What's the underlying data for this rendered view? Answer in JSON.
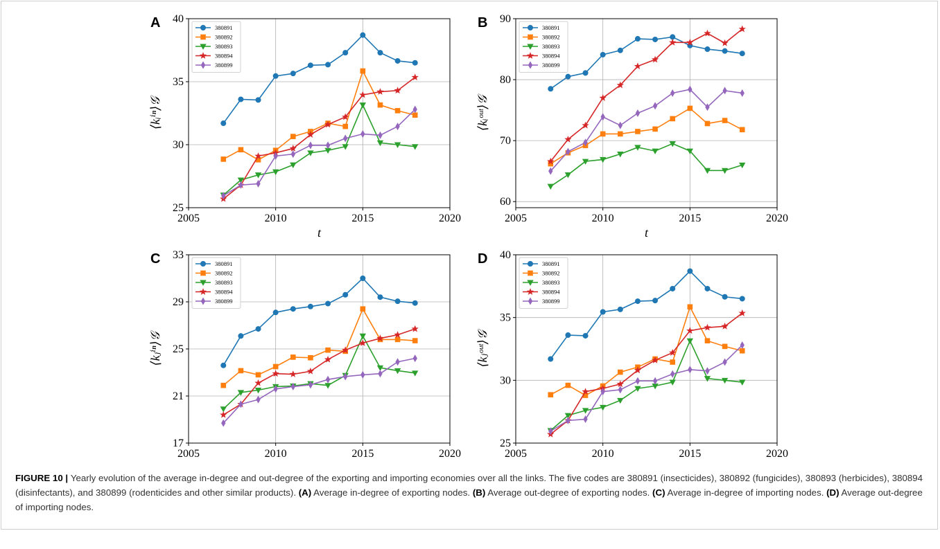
{
  "chart_data": [
    {
      "type": "line",
      "label": "A",
      "xlabel": "t",
      "ylabel": "⟨kᵢⁱⁿ⟩𝒢",
      "x": [
        2007,
        2008,
        2009,
        2010,
        2011,
        2012,
        2013,
        2014,
        2015,
        2016,
        2017,
        2018
      ],
      "xlim": [
        2005,
        2020
      ],
      "xticks": [
        2005,
        2010,
        2015,
        2020
      ],
      "ylim": [
        25,
        40
      ],
      "yticks": [
        25,
        30,
        35,
        40
      ],
      "grid": true,
      "legend": "upper-left",
      "series": [
        {
          "name": "380891",
          "color": "#1f77b4",
          "marker": "circle",
          "values": [
            31.7,
            33.6,
            33.55,
            35.45,
            35.65,
            36.3,
            36.35,
            37.3,
            38.7,
            37.3,
            36.65,
            36.5
          ]
        },
        {
          "name": "380892",
          "color": "#ff7f0e",
          "marker": "square",
          "values": [
            28.85,
            29.6,
            28.8,
            29.55,
            30.65,
            31.05,
            31.7,
            31.45,
            35.85,
            33.15,
            32.7,
            32.35
          ]
        },
        {
          "name": "380893",
          "color": "#2ca02c",
          "marker": "triangle-down",
          "values": [
            26.0,
            27.2,
            27.6,
            27.85,
            28.4,
            29.35,
            29.55,
            29.85,
            33.15,
            30.15,
            30.0,
            29.85
          ]
        },
        {
          "name": "380894",
          "color": "#d62728",
          "marker": "star",
          "values": [
            25.7,
            26.8,
            29.1,
            29.35,
            29.7,
            30.8,
            31.6,
            32.2,
            33.95,
            34.2,
            34.3,
            35.35
          ]
        },
        {
          "name": "380899",
          "color": "#9467bd",
          "marker": "thin-diamond",
          "values": [
            25.95,
            26.8,
            26.9,
            29.1,
            29.25,
            29.95,
            29.95,
            30.5,
            30.85,
            30.75,
            31.45,
            32.8
          ]
        }
      ]
    },
    {
      "type": "line",
      "label": "B",
      "xlabel": "t",
      "ylabel": "⟨kᵢᵒᵘᵗ⟩𝒢",
      "x": [
        2007,
        2008,
        2009,
        2010,
        2011,
        2012,
        2013,
        2014,
        2015,
        2016,
        2017,
        2018
      ],
      "xlim": [
        2005,
        2020
      ],
      "xticks": [
        2005,
        2010,
        2015,
        2020
      ],
      "ylim": [
        59,
        90
      ],
      "yticks": [
        60,
        70,
        80,
        90
      ],
      "grid": true,
      "legend": "upper-left",
      "series": [
        {
          "name": "380891",
          "color": "#1f77b4",
          "marker": "circle",
          "values": [
            78.5,
            80.5,
            81.1,
            84.1,
            84.8,
            86.7,
            86.6,
            87.0,
            85.6,
            85.0,
            84.7,
            84.3
          ]
        },
        {
          "name": "380892",
          "color": "#ff7f0e",
          "marker": "square",
          "values": [
            66.2,
            68.0,
            69.2,
            71.1,
            71.1,
            71.5,
            71.9,
            73.6,
            75.3,
            72.8,
            73.3,
            71.8
          ]
        },
        {
          "name": "380893",
          "color": "#2ca02c",
          "marker": "triangle-down",
          "values": [
            62.5,
            64.4,
            66.6,
            66.9,
            67.8,
            68.9,
            68.3,
            69.5,
            68.3,
            65.1,
            65.1,
            66.0
          ]
        },
        {
          "name": "380894",
          "color": "#d62728",
          "marker": "star",
          "values": [
            66.6,
            70.2,
            72.5,
            77.0,
            79.1,
            82.2,
            83.3,
            86.1,
            86.1,
            87.6,
            86.0,
            88.3
          ]
        },
        {
          "name": "380899",
          "color": "#9467bd",
          "marker": "thin-diamond",
          "values": [
            65.0,
            68.2,
            69.7,
            73.9,
            72.5,
            74.5,
            75.7,
            77.8,
            78.4,
            75.5,
            78.2,
            77.8
          ]
        }
      ]
    },
    {
      "type": "line",
      "label": "C",
      "xlabel": "t",
      "ylabel": "⟨kⱼⁱⁿ⟩𝒢",
      "x": [
        2007,
        2008,
        2009,
        2010,
        2011,
        2012,
        2013,
        2014,
        2015,
        2016,
        2017,
        2018
      ],
      "xlim": [
        2005,
        2020
      ],
      "xticks": [
        2005,
        2010,
        2015,
        2020
      ],
      "ylim": [
        17,
        33
      ],
      "yticks": [
        17,
        21,
        25,
        29,
        33
      ],
      "grid": true,
      "legend": "upper-left",
      "series": [
        {
          "name": "380891",
          "color": "#1f77b4",
          "marker": "circle",
          "values": [
            23.6,
            26.1,
            26.7,
            28.1,
            28.4,
            28.6,
            28.85,
            29.6,
            31.0,
            29.4,
            29.05,
            28.9
          ]
        },
        {
          "name": "380892",
          "color": "#ff7f0e",
          "marker": "square",
          "values": [
            21.9,
            23.15,
            22.8,
            23.5,
            24.3,
            24.25,
            24.9,
            24.8,
            28.4,
            25.8,
            25.8,
            25.7
          ]
        },
        {
          "name": "380893",
          "color": "#2ca02c",
          "marker": "triangle-down",
          "values": [
            19.9,
            21.3,
            21.5,
            21.8,
            21.85,
            22.05,
            21.9,
            22.75,
            26.1,
            23.4,
            23.15,
            22.95
          ]
        },
        {
          "name": "380894",
          "color": "#d62728",
          "marker": "star",
          "values": [
            19.4,
            20.3,
            22.1,
            22.9,
            22.85,
            23.1,
            24.1,
            24.9,
            25.5,
            25.9,
            26.2,
            26.7
          ]
        },
        {
          "name": "380899",
          "color": "#9467bd",
          "marker": "thin-diamond",
          "values": [
            18.7,
            20.3,
            20.7,
            21.6,
            21.8,
            21.95,
            22.4,
            22.65,
            22.8,
            22.9,
            23.9,
            24.2
          ]
        }
      ]
    },
    {
      "type": "line",
      "label": "D",
      "xlabel": "t",
      "ylabel": "⟨kⱼᵒᵘᵗ⟩𝒢",
      "x": [
        2007,
        2008,
        2009,
        2010,
        2011,
        2012,
        2013,
        2014,
        2015,
        2016,
        2017,
        2018
      ],
      "xlim": [
        2005,
        2020
      ],
      "xticks": [
        2005,
        2010,
        2015,
        2020
      ],
      "ylim": [
        25,
        40
      ],
      "yticks": [
        25,
        30,
        35,
        40
      ],
      "grid": true,
      "legend": "upper-left",
      "series": [
        {
          "name": "380891",
          "color": "#1f77b4",
          "marker": "circle",
          "values": [
            31.7,
            33.6,
            33.55,
            35.45,
            35.65,
            36.3,
            36.35,
            37.3,
            38.7,
            37.3,
            36.65,
            36.5
          ]
        },
        {
          "name": "380892",
          "color": "#ff7f0e",
          "marker": "square",
          "values": [
            28.85,
            29.6,
            28.8,
            29.55,
            30.65,
            31.05,
            31.7,
            31.45,
            35.85,
            33.15,
            32.7,
            32.35
          ]
        },
        {
          "name": "380893",
          "color": "#2ca02c",
          "marker": "triangle-down",
          "values": [
            26.0,
            27.2,
            27.6,
            27.85,
            28.4,
            29.35,
            29.55,
            29.85,
            33.15,
            30.15,
            30.0,
            29.85
          ]
        },
        {
          "name": "380894",
          "color": "#d62728",
          "marker": "star",
          "values": [
            25.7,
            26.8,
            29.1,
            29.35,
            29.7,
            30.8,
            31.6,
            32.2,
            33.95,
            34.2,
            34.3,
            35.35
          ]
        },
        {
          "name": "380899",
          "color": "#9467bd",
          "marker": "thin-diamond",
          "values": [
            25.95,
            26.8,
            26.9,
            29.1,
            29.25,
            29.95,
            29.95,
            30.5,
            30.85,
            30.75,
            31.45,
            32.8
          ]
        }
      ]
    }
  ],
  "caption": [
    {
      "text": "FIGURE 10 | ",
      "bold": true
    },
    {
      "text": "Yearly evolution of the average in-degree and out-degree of the exporting and importing economies over all the links. The five codes are 380891 (insecticides), 380892 (fungicides), 380893 (herbicides), 380894 (disinfectants), and 380899 (rodenticides and other similar products). ",
      "bold": false
    },
    {
      "text": "(A)",
      "bold": true
    },
    {
      "text": " Average in-degree of exporting nodes. ",
      "bold": false
    },
    {
      "text": "(B)",
      "bold": true
    },
    {
      "text": " Average out-degree of exporting nodes. ",
      "bold": false
    },
    {
      "text": "(C)",
      "bold": true
    },
    {
      "text": " Average in-degree of importing nodes. ",
      "bold": false
    },
    {
      "text": "(D)",
      "bold": true
    },
    {
      "text": " Average out-degree of importing nodes.",
      "bold": false
    }
  ]
}
